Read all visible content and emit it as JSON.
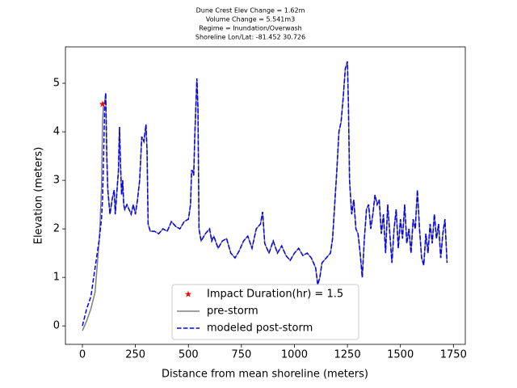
{
  "chart_data": {
    "type": "line",
    "title_lines": [
      "Dune Crest Elev Change = 1.62m",
      "Volume Change = 5.541m3",
      "Regime = Inundation/Overwash",
      "Shoreline Lon/Lat: -81.452 30.726"
    ],
    "xlabel": "Distance from mean shoreline (meters)",
    "ylabel": "Elevation (meters)",
    "xlim": [
      -80,
      1806
    ],
    "ylim": [
      -0.38,
      5.75
    ],
    "xticks": [
      0,
      250,
      500,
      750,
      1000,
      1250,
      1500,
      1750
    ],
    "yticks": [
      0,
      1,
      2,
      3,
      4,
      5
    ],
    "legend": "lower center",
    "marker": {
      "name": "Impact Duration(hr) = 1.5",
      "x": 95,
      "y": 4.57,
      "color": "#ff0000"
    },
    "x": [
      0,
      20,
      40,
      60,
      80,
      90,
      95,
      100,
      105,
      110,
      115,
      120,
      130,
      140,
      150,
      155,
      160,
      170,
      175,
      180,
      185,
      190,
      195,
      200,
      210,
      220,
      230,
      240,
      250,
      260,
      270,
      280,
      290,
      300,
      305,
      310,
      320,
      340,
      360,
      380,
      400,
      420,
      440,
      460,
      480,
      500,
      510,
      515,
      520,
      525,
      530,
      540,
      545,
      550,
      560,
      580,
      600,
      610,
      620,
      640,
      660,
      680,
      700,
      720,
      740,
      760,
      780,
      800,
      820,
      840,
      850,
      860,
      880,
      900,
      920,
      940,
      960,
      980,
      1000,
      1020,
      1040,
      1060,
      1080,
      1100,
      1110,
      1120,
      1130,
      1150,
      1170,
      1180,
      1190,
      1200,
      1210,
      1220,
      1230,
      1240,
      1250,
      1255,
      1260,
      1270,
      1280,
      1290,
      1300,
      1310,
      1320,
      1330,
      1340,
      1350,
      1360,
      1370,
      1380,
      1390,
      1400,
      1410,
      1420,
      1430,
      1440,
      1450,
      1460,
      1470,
      1480,
      1490,
      1500,
      1510,
      1520,
      1530,
      1540,
      1550,
      1560,
      1570,
      1580,
      1590,
      1600,
      1610,
      1620,
      1630,
      1640,
      1650,
      1660,
      1670,
      1680,
      1690,
      1700,
      1710,
      1720
    ],
    "series": [
      {
        "name": "pre-storm",
        "color": "#808080",
        "dash": false,
        "values": [
          -0.1,
          0.1,
          0.35,
          0.7,
          1.8,
          2.8,
          4.2,
          4.6,
          4.6,
          4.8,
          3.5,
          2.8,
          2.3,
          2.6,
          2.8,
          2.3,
          2.6,
          3.2,
          4.1,
          3.3,
          2.7,
          3.0,
          2.5,
          2.4,
          2.5,
          2.4,
          2.3,
          2.5,
          2.3,
          2.6,
          3.0,
          3.9,
          3.8,
          4.15,
          3.6,
          2.1,
          1.95,
          1.95,
          1.9,
          2.0,
          1.95,
          2.15,
          2.05,
          2.0,
          2.15,
          2.2,
          2.5,
          3.2,
          3.2,
          3.1,
          3.9,
          5.1,
          4.5,
          2.0,
          1.75,
          1.9,
          2.0,
          1.75,
          1.85,
          1.6,
          1.75,
          1.8,
          1.5,
          1.4,
          1.55,
          1.75,
          1.85,
          1.6,
          2.0,
          2.1,
          2.35,
          1.7,
          1.5,
          1.75,
          1.5,
          1.65,
          1.45,
          1.35,
          1.5,
          1.6,
          1.45,
          1.5,
          1.4,
          1.2,
          0.85,
          1.0,
          1.3,
          1.4,
          1.5,
          1.8,
          2.5,
          3.2,
          4.0,
          4.2,
          4.7,
          5.3,
          5.45,
          4.5,
          3.0,
          2.3,
          2.6,
          2.0,
          1.9,
          1.5,
          1.0,
          1.8,
          2.4,
          2.5,
          2.0,
          2.3,
          2.7,
          2.5,
          2.6,
          1.9,
          2.3,
          1.5,
          2.5,
          1.9,
          1.3,
          2.0,
          2.4,
          1.6,
          2.2,
          1.8,
          2.5,
          1.7,
          2.0,
          1.5,
          2.2,
          2.0,
          2.8,
          2.0,
          1.4,
          1.25,
          1.9,
          1.5,
          2.1,
          1.7,
          2.3,
          1.8,
          2.1,
          1.4,
          1.9,
          2.2,
          1.3
        ]
      },
      {
        "name": "modeled post-storm",
        "color": "#0000ff",
        "dash": true,
        "values": [
          0.0,
          0.35,
          0.6,
          1.2,
          1.8,
          2.2,
          2.6,
          3.5,
          4.5,
          4.8,
          3.5,
          2.8,
          2.3,
          2.6,
          2.8,
          2.3,
          2.6,
          3.2,
          4.1,
          3.3,
          2.7,
          3.0,
          2.5,
          2.4,
          2.5,
          2.4,
          2.3,
          2.5,
          2.3,
          2.6,
          3.0,
          3.9,
          3.8,
          4.15,
          3.6,
          2.1,
          1.95,
          1.95,
          1.9,
          2.0,
          1.95,
          2.15,
          2.05,
          2.0,
          2.15,
          2.2,
          2.5,
          3.2,
          3.2,
          3.1,
          3.9,
          5.1,
          4.5,
          2.0,
          1.75,
          1.9,
          2.0,
          1.75,
          1.85,
          1.6,
          1.75,
          1.8,
          1.5,
          1.4,
          1.55,
          1.75,
          1.85,
          1.6,
          2.0,
          2.1,
          2.35,
          1.7,
          1.5,
          1.75,
          1.5,
          1.65,
          1.45,
          1.35,
          1.5,
          1.6,
          1.45,
          1.5,
          1.4,
          1.2,
          0.85,
          1.0,
          1.3,
          1.4,
          1.5,
          1.8,
          2.5,
          3.2,
          4.0,
          4.2,
          4.7,
          5.3,
          5.45,
          4.5,
          3.0,
          2.3,
          2.6,
          2.0,
          1.9,
          1.5,
          1.0,
          1.8,
          2.4,
          2.5,
          2.0,
          2.3,
          2.7,
          2.5,
          2.6,
          1.9,
          2.3,
          1.5,
          2.5,
          1.9,
          1.3,
          2.0,
          2.4,
          1.6,
          2.2,
          1.8,
          2.5,
          1.7,
          2.0,
          1.5,
          2.2,
          2.0,
          2.8,
          2.0,
          1.4,
          1.25,
          1.9,
          1.5,
          2.1,
          1.7,
          2.3,
          1.8,
          2.1,
          1.4,
          1.9,
          2.2,
          1.3
        ]
      }
    ]
  }
}
